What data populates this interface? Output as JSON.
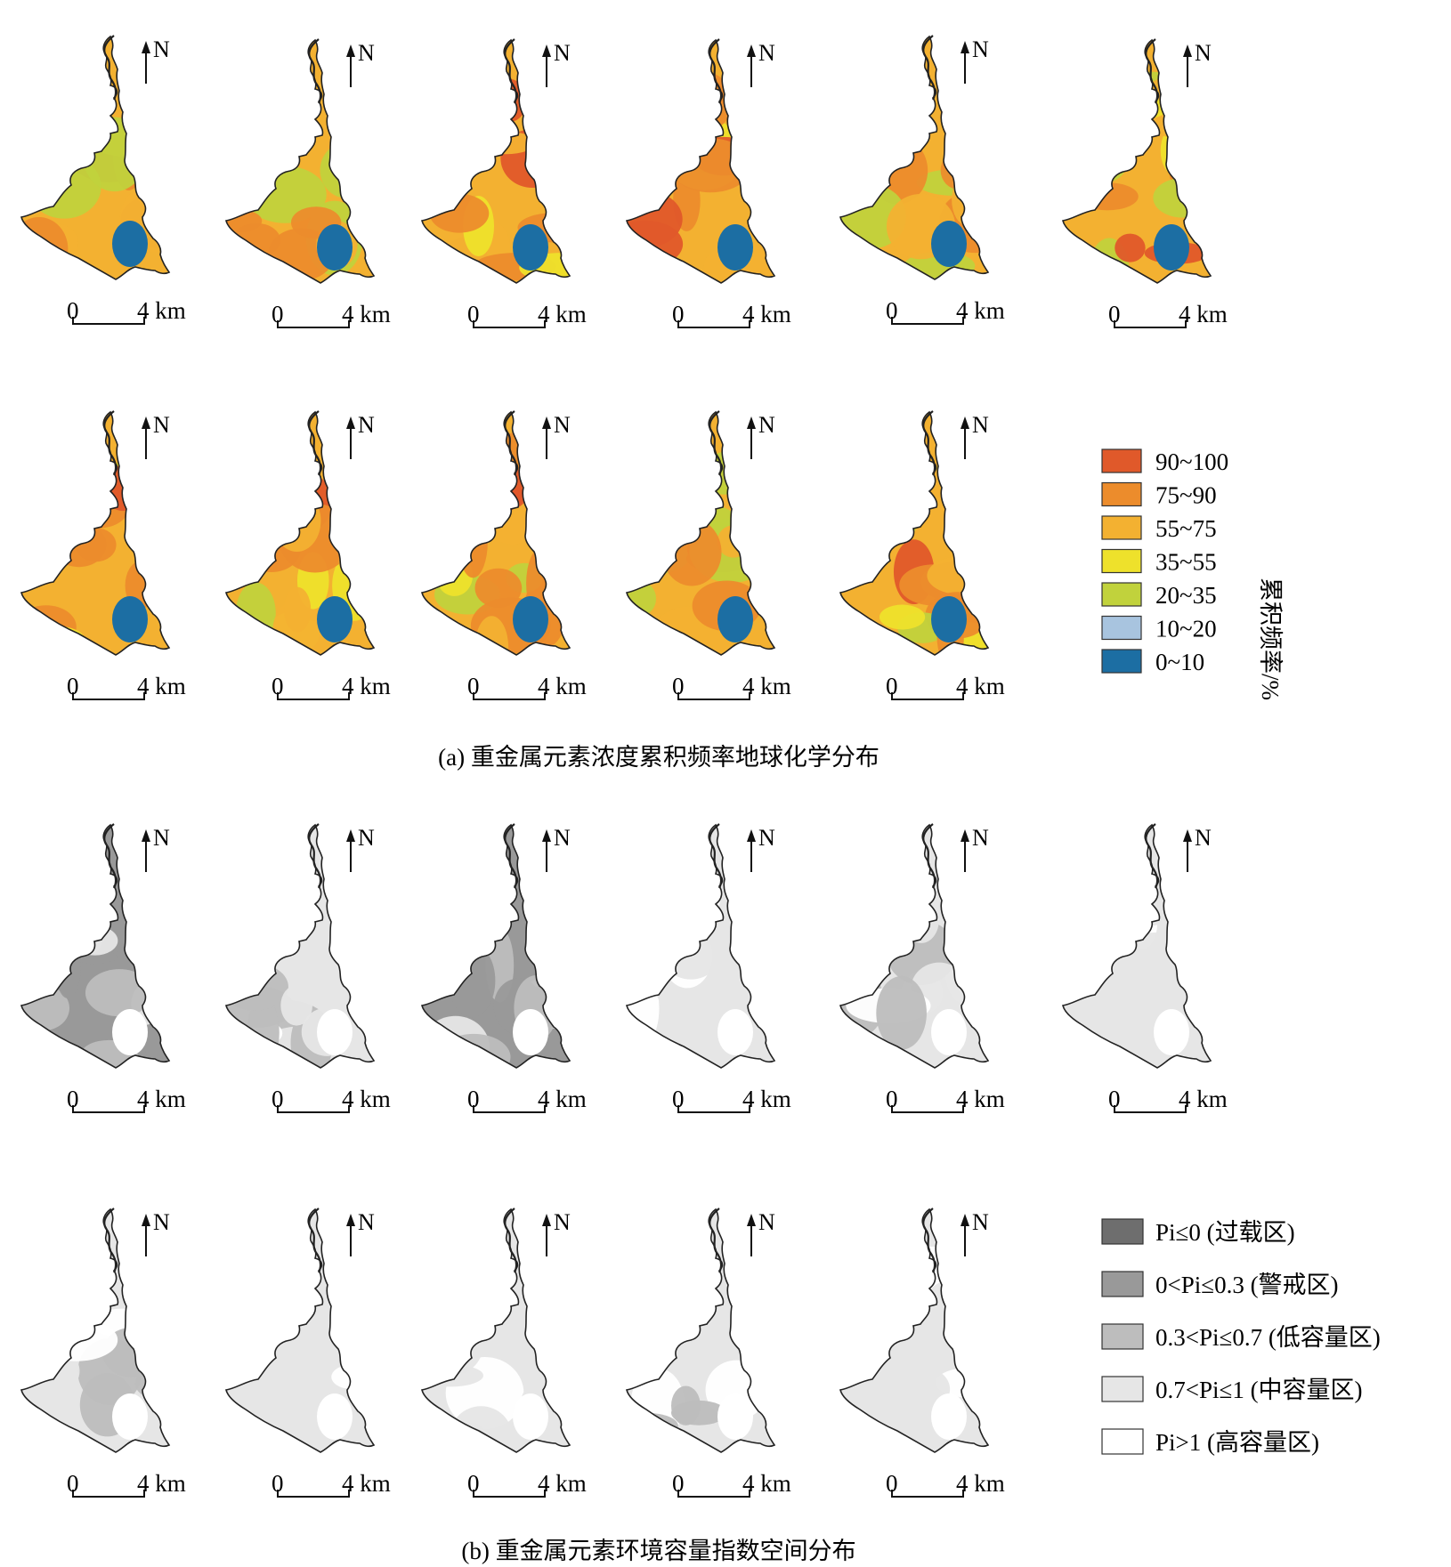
{
  "panel_a": {
    "caption": "(a) 重金属元素浓度累积频率地球化学分布",
    "legend_title": "累积频率/%",
    "legend": [
      {
        "label": "90~100",
        "color": "#e0592a"
      },
      {
        "label": "75~90",
        "color": "#ec8c2c"
      },
      {
        "label": "55~75",
        "color": "#f3b131"
      },
      {
        "label": "35~55",
        "color": "#eee12b"
      },
      {
        "label": "20~35",
        "color": "#c1d23c"
      },
      {
        "label": "10~20",
        "color": "#a8c4df"
      },
      {
        "label": "0~10",
        "color": "#1c6ea3"
      }
    ],
    "map_count": 11,
    "north_label": "N",
    "scale_zero": "0",
    "scale_label": "4 km"
  },
  "panel_b": {
    "caption": "(b) 重金属元素环境容量指数空间分布",
    "legend": [
      {
        "label": "Pi≤0 (过载区)",
        "color": "#6e6e6e"
      },
      {
        "label": "0<Pi≤0.3 (警戒区)",
        "color": "#999999"
      },
      {
        "label": "0.3<Pi≤0.7 (低容量区)",
        "color": "#bdbdbd"
      },
      {
        "label": "0.7<Pi≤1 (中容量区)",
        "color": "#e6e6e6"
      },
      {
        "label": "Pi>1 (高容量区)",
        "color": "#ffffff"
      }
    ],
    "map_count": 11,
    "north_label": "N",
    "scale_zero": "0",
    "scale_label": "4 km"
  }
}
